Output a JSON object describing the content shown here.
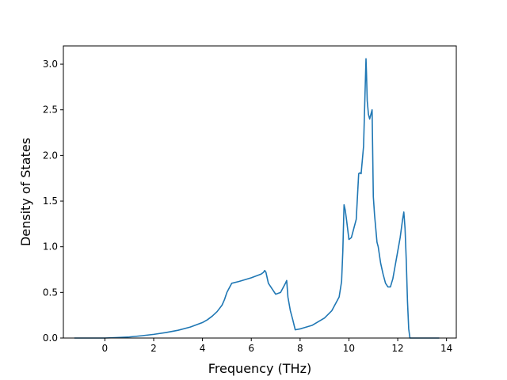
{
  "chart_data": {
    "type": "line",
    "xlabel": "Frequency (THz)",
    "ylabel": "Density of States",
    "xlim": [
      -1.7,
      14.4
    ],
    "ylim": [
      0.0,
      3.2
    ],
    "xticks": [
      0,
      2,
      4,
      6,
      8,
      10,
      12,
      14
    ],
    "xtick_labels": [
      "0",
      "2",
      "4",
      "6",
      "8",
      "10",
      "12",
      "14"
    ],
    "yticks": [
      0.0,
      0.5,
      1.0,
      1.5,
      2.0,
      2.5,
      3.0
    ],
    "ytick_labels": [
      "0.0",
      "0.5",
      "1.0",
      "1.5",
      "2.0",
      "2.5",
      "3.0"
    ],
    "grid": false,
    "line_color": "#1f77b4",
    "series": [
      {
        "x": [
          -1.25,
          -0.5,
          0.0,
          0.5,
          1.0,
          1.5,
          2.0,
          2.5,
          3.0,
          3.5,
          4.0,
          4.2,
          4.4,
          4.6,
          4.8,
          4.9,
          5.0,
          5.2,
          5.5,
          6.0,
          6.4,
          6.5,
          6.55,
          6.6,
          6.7,
          6.9,
          7.0,
          7.2,
          7.4,
          7.45,
          7.5,
          7.6,
          7.7,
          7.8,
          8.0,
          8.5,
          9.0,
          9.3,
          9.6,
          9.7,
          9.75,
          9.8,
          9.85,
          9.9,
          10.0,
          10.1,
          10.2,
          10.3,
          10.4,
          10.45,
          10.5,
          10.6,
          10.7,
          10.72,
          10.75,
          10.8,
          10.85,
          10.9,
          10.95,
          11.0,
          11.05,
          11.1,
          11.15,
          11.2,
          11.3,
          11.4,
          11.5,
          11.6,
          11.7,
          11.8,
          11.9,
          12.0,
          12.1,
          12.2,
          12.25,
          12.3,
          12.35,
          12.4,
          12.45,
          12.5,
          13.0,
          13.7
        ],
        "y": [
          0.0,
          0.0,
          0.0,
          0.005,
          0.012,
          0.025,
          0.04,
          0.06,
          0.085,
          0.12,
          0.17,
          0.2,
          0.24,
          0.29,
          0.36,
          0.42,
          0.5,
          0.6,
          0.62,
          0.66,
          0.7,
          0.72,
          0.74,
          0.72,
          0.6,
          0.52,
          0.48,
          0.5,
          0.6,
          0.63,
          0.45,
          0.3,
          0.2,
          0.09,
          0.1,
          0.14,
          0.22,
          0.3,
          0.45,
          0.62,
          0.95,
          1.46,
          1.4,
          1.3,
          1.08,
          1.1,
          1.2,
          1.3,
          1.8,
          1.81,
          1.8,
          2.1,
          3.06,
          2.9,
          2.6,
          2.45,
          2.4,
          2.45,
          2.5,
          1.55,
          1.35,
          1.2,
          1.05,
          1.0,
          0.82,
          0.7,
          0.6,
          0.56,
          0.56,
          0.65,
          0.8,
          0.95,
          1.1,
          1.3,
          1.38,
          1.2,
          0.85,
          0.4,
          0.1,
          0.0,
          0.0,
          0.0
        ]
      }
    ]
  }
}
